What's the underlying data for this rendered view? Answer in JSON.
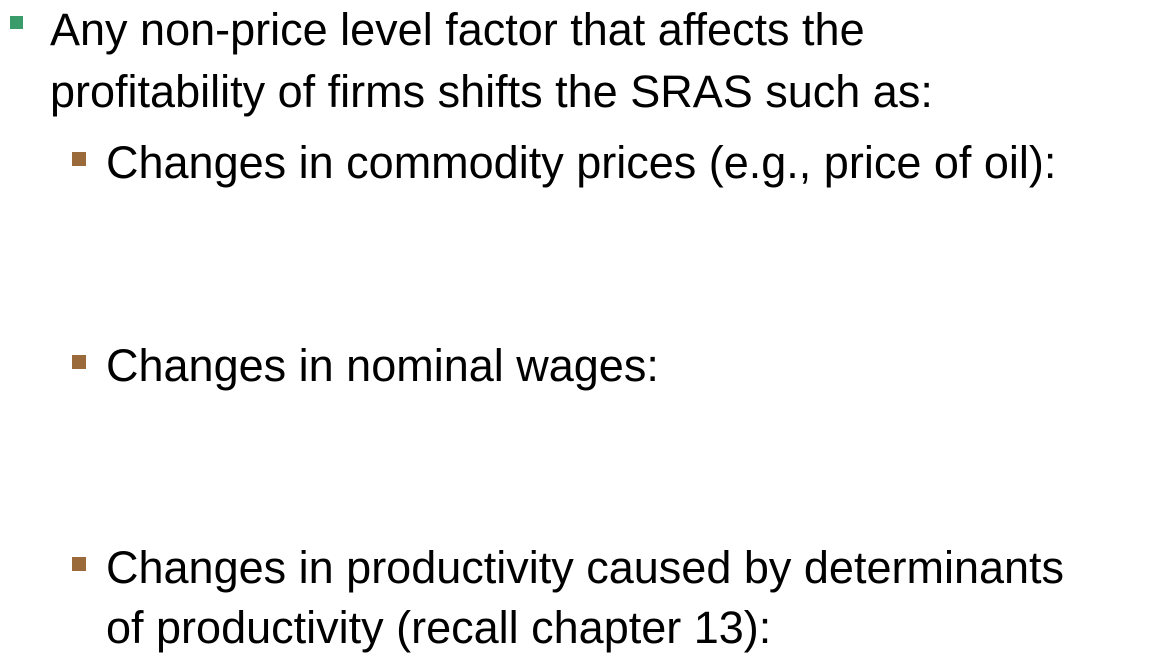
{
  "slide": {
    "main_bullet": {
      "lines": [
        "Any non-price level factor that affects the",
        "profitability of firms shifts the SRAS such as:"
      ],
      "bullet_color": "#3a9b6b"
    },
    "sub_bullets": [
      {
        "lines": [
          "Changes in commodity prices (e.g., price of oil):"
        ]
      },
      {
        "lines": [
          "Changes in nominal wages:"
        ]
      },
      {
        "lines": [
          "Changes in productivity caused by determinants",
          "of productivity (recall chapter 13):"
        ]
      }
    ],
    "sub_bullet_color": "#9b6a3a",
    "text_color": "#000000"
  }
}
